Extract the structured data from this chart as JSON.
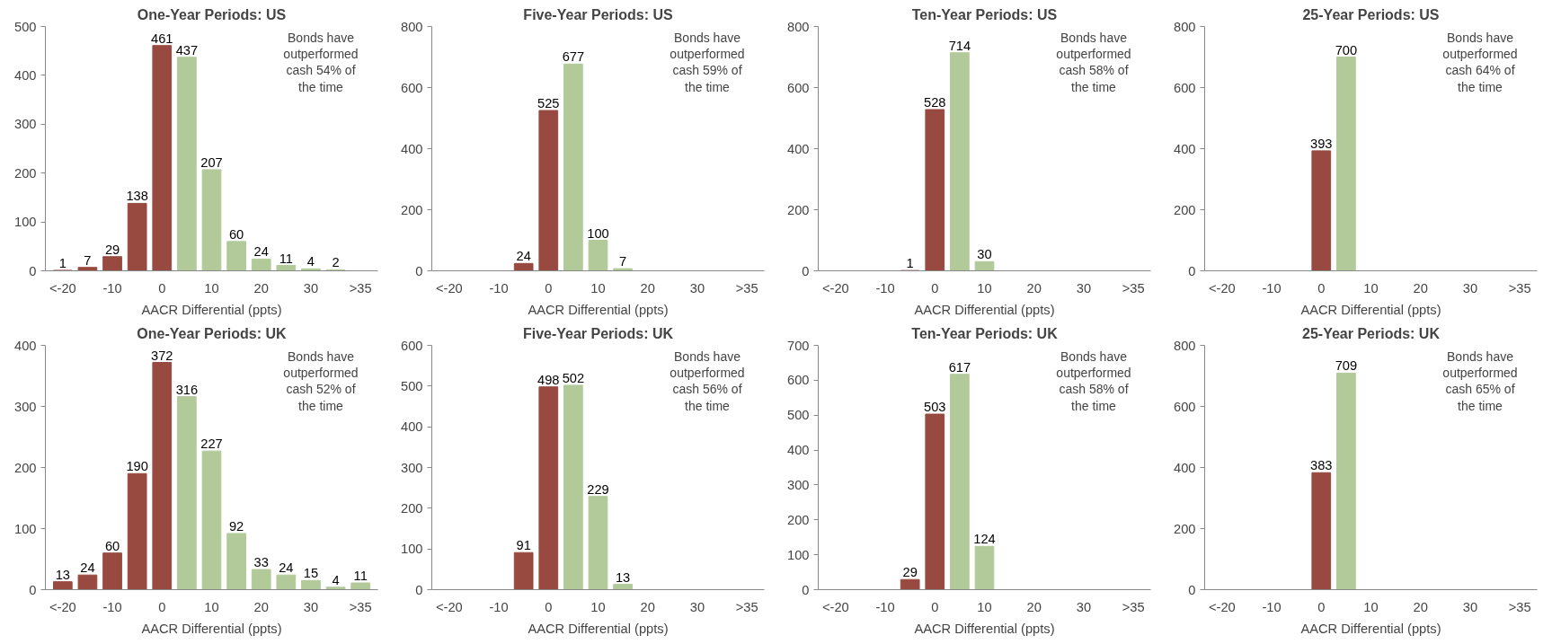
{
  "chart_data": [
    {
      "type": "bar",
      "title": "One-Year Periods: US",
      "xlabel": "AACR Differential (ppts)",
      "categories": [
        "<-20",
        null,
        "-10",
        null,
        "0",
        null,
        "10",
        null,
        "20",
        null,
        "30",
        null,
        ">35"
      ],
      "values": [
        1,
        7,
        29,
        138,
        461,
        437,
        207,
        60,
        24,
        11,
        4,
        2,
        null
      ],
      "colors": [
        "#984a40",
        "#984a40",
        "#984a40",
        "#984a40",
        "#984a40",
        "#b2ca9a",
        "#b2ca9a",
        "#b2ca9a",
        "#b2ca9a",
        "#b2ca9a",
        "#b2ca9a",
        "#b2ca9a",
        "#b2ca9a"
      ],
      "ylim": [
        0,
        500
      ],
      "yticks": [
        0,
        100,
        200,
        300,
        400,
        500
      ],
      "data_labels": true,
      "grid": false,
      "annotations": [
        "Bonds have\noutperformed\ncash 54% of\nthe time"
      ]
    },
    {
      "type": "bar",
      "title": "Five-Year Periods: US",
      "xlabel": "AACR Differential (ppts)",
      "categories": [
        "<-20",
        null,
        "-10",
        null,
        "0",
        null,
        "10",
        null,
        "20",
        null,
        "30",
        null,
        ">35"
      ],
      "values": [
        null,
        null,
        null,
        24,
        525,
        677,
        100,
        7,
        null,
        null,
        null,
        null,
        null
      ],
      "colors": [
        "#984a40",
        "#984a40",
        "#984a40",
        "#984a40",
        "#984a40",
        "#b2ca9a",
        "#b2ca9a",
        "#b2ca9a",
        "#b2ca9a",
        "#b2ca9a",
        "#b2ca9a",
        "#b2ca9a",
        "#b2ca9a"
      ],
      "ylim": [
        0,
        800
      ],
      "yticks": [
        0,
        200,
        400,
        600,
        800
      ],
      "data_labels": true,
      "grid": false,
      "annotations": [
        "Bonds have\noutperformed\ncash 59% of\nthe time"
      ]
    },
    {
      "type": "bar",
      "title": "Ten-Year Periods: US",
      "xlabel": "AACR Differential (ppts)",
      "categories": [
        "<-20",
        null,
        "-10",
        null,
        "0",
        null,
        "10",
        null,
        "20",
        null,
        "30",
        null,
        ">35"
      ],
      "values": [
        null,
        null,
        null,
        1,
        528,
        714,
        30,
        null,
        null,
        null,
        null,
        null,
        null
      ],
      "colors": [
        "#984a40",
        "#984a40",
        "#984a40",
        "#984a40",
        "#984a40",
        "#b2ca9a",
        "#b2ca9a",
        "#b2ca9a",
        "#b2ca9a",
        "#b2ca9a",
        "#b2ca9a",
        "#b2ca9a",
        "#b2ca9a"
      ],
      "ylim": [
        0,
        800
      ],
      "yticks": [
        0,
        200,
        400,
        600,
        800
      ],
      "data_labels": true,
      "grid": false,
      "annotations": [
        "Bonds have\noutperformed\ncash 58% of\nthe time"
      ]
    },
    {
      "type": "bar",
      "title": "25-Year Periods: US",
      "xlabel": "AACR Differential (ppts)",
      "categories": [
        "<-20",
        null,
        "-10",
        null,
        "0",
        null,
        "10",
        null,
        "20",
        null,
        "30",
        null,
        ">35"
      ],
      "values": [
        null,
        null,
        null,
        null,
        393,
        700,
        null,
        null,
        null,
        null,
        null,
        null,
        null
      ],
      "colors": [
        "#984a40",
        "#984a40",
        "#984a40",
        "#984a40",
        "#984a40",
        "#b2ca9a",
        "#b2ca9a",
        "#b2ca9a",
        "#b2ca9a",
        "#b2ca9a",
        "#b2ca9a",
        "#b2ca9a",
        "#b2ca9a"
      ],
      "ylim": [
        0,
        800
      ],
      "yticks": [
        0,
        200,
        400,
        600,
        800
      ],
      "data_labels": true,
      "grid": false,
      "annotations": [
        "Bonds have\noutperformed\ncash 64% of\nthe time"
      ]
    },
    {
      "type": "bar",
      "title": "One-Year Periods: UK",
      "xlabel": "AACR Differential (ppts)",
      "categories": [
        "<-20",
        null,
        "-10",
        null,
        "0",
        null,
        "10",
        null,
        "20",
        null,
        "30",
        null,
        ">35"
      ],
      "values": [
        13,
        24,
        60,
        190,
        372,
        316,
        227,
        92,
        33,
        24,
        15,
        4,
        11
      ],
      "colors": [
        "#984a40",
        "#984a40",
        "#984a40",
        "#984a40",
        "#984a40",
        "#b2ca9a",
        "#b2ca9a",
        "#b2ca9a",
        "#b2ca9a",
        "#b2ca9a",
        "#b2ca9a",
        "#b2ca9a",
        "#b2ca9a"
      ],
      "ylim": [
        0,
        400
      ],
      "yticks": [
        0,
        100,
        200,
        300,
        400
      ],
      "data_labels": true,
      "grid": false,
      "annotations": [
        "Bonds have\noutperformed\ncash 52% of\nthe time"
      ]
    },
    {
      "type": "bar",
      "title": "Five-Year Periods: UK",
      "xlabel": "AACR Differential (ppts)",
      "categories": [
        "<-20",
        null,
        "-10",
        null,
        "0",
        null,
        "10",
        null,
        "20",
        null,
        "30",
        null,
        ">35"
      ],
      "values": [
        null,
        null,
        null,
        91,
        498,
        502,
        229,
        13,
        null,
        null,
        null,
        null,
        null
      ],
      "colors": [
        "#984a40",
        "#984a40",
        "#984a40",
        "#984a40",
        "#984a40",
        "#b2ca9a",
        "#b2ca9a",
        "#b2ca9a",
        "#b2ca9a",
        "#b2ca9a",
        "#b2ca9a",
        "#b2ca9a",
        "#b2ca9a"
      ],
      "ylim": [
        0,
        600
      ],
      "yticks": [
        0,
        100,
        200,
        300,
        400,
        500,
        600
      ],
      "data_labels": true,
      "grid": false,
      "annotations": [
        "Bonds have\noutperformed\ncash 56% of\nthe time"
      ]
    },
    {
      "type": "bar",
      "title": "Ten-Year Periods: UK",
      "xlabel": "AACR Differential (ppts)",
      "categories": [
        "<-20",
        null,
        "-10",
        null,
        "0",
        null,
        "10",
        null,
        "20",
        null,
        "30",
        null,
        ">35"
      ],
      "values": [
        null,
        null,
        null,
        29,
        503,
        617,
        124,
        null,
        null,
        null,
        null,
        null,
        null
      ],
      "colors": [
        "#984a40",
        "#984a40",
        "#984a40",
        "#984a40",
        "#984a40",
        "#b2ca9a",
        "#b2ca9a",
        "#b2ca9a",
        "#b2ca9a",
        "#b2ca9a",
        "#b2ca9a",
        "#b2ca9a",
        "#b2ca9a"
      ],
      "ylim": [
        0,
        700
      ],
      "yticks": [
        0,
        100,
        200,
        300,
        400,
        500,
        600,
        700
      ],
      "data_labels": true,
      "grid": false,
      "annotations": [
        "Bonds have\noutperformed\ncash 58% of\nthe time"
      ]
    },
    {
      "type": "bar",
      "title": "25-Year Periods: UK",
      "xlabel": "AACR Differential (ppts)",
      "categories": [
        "<-20",
        null,
        "-10",
        null,
        "0",
        null,
        "10",
        null,
        "20",
        null,
        "30",
        null,
        ">35"
      ],
      "values": [
        null,
        null,
        null,
        null,
        383,
        709,
        null,
        null,
        null,
        null,
        null,
        null,
        null
      ],
      "colors": [
        "#984a40",
        "#984a40",
        "#984a40",
        "#984a40",
        "#984a40",
        "#b2ca9a",
        "#b2ca9a",
        "#b2ca9a",
        "#b2ca9a",
        "#b2ca9a",
        "#b2ca9a",
        "#b2ca9a",
        "#b2ca9a"
      ],
      "ylim": [
        0,
        800
      ],
      "yticks": [
        0,
        200,
        400,
        600,
        800
      ],
      "data_labels": true,
      "grid": false,
      "annotations": [
        "Bonds have\noutperformed\ncash 65% of\nthe time"
      ]
    }
  ]
}
